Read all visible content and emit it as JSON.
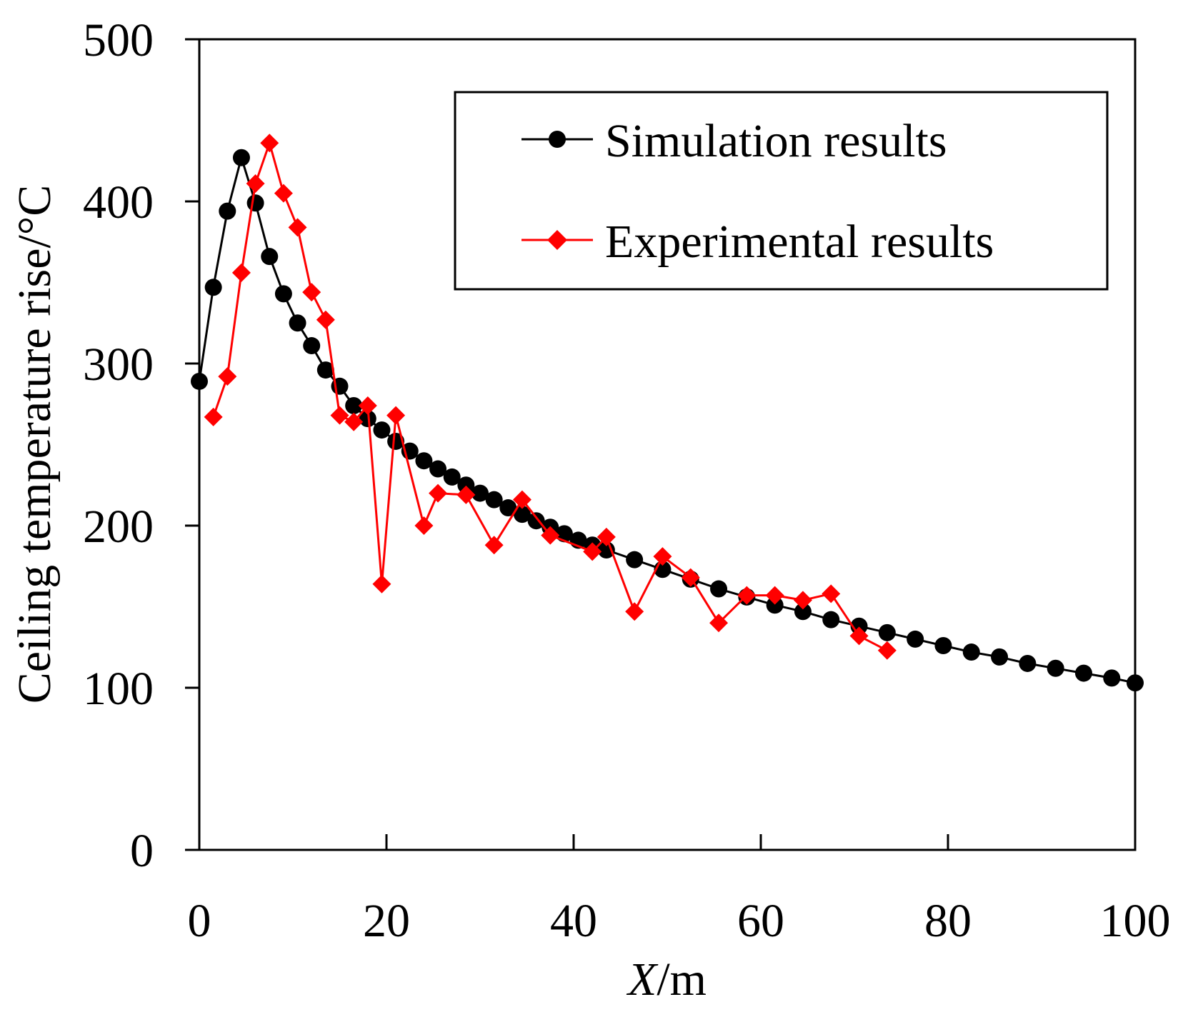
{
  "chart_data": {
    "type": "line",
    "title": "",
    "xlabel_var": "X",
    "xlabel_unit": "/m",
    "ylabel": "Ceiling temperature rise/°C",
    "xlim": [
      0,
      100
    ],
    "ylim": [
      0,
      500
    ],
    "xticks": [
      0,
      20,
      40,
      60,
      80,
      100
    ],
    "yticks": [
      0,
      100,
      200,
      300,
      400,
      500
    ],
    "xtick_labels": [
      "0",
      "20",
      "40",
      "60",
      "80",
      "100"
    ],
    "ytick_labels": [
      "0",
      "100",
      "200",
      "300",
      "400",
      "500"
    ],
    "grid": false,
    "legend_position": "top-right",
    "series": [
      {
        "name": "Simulation results",
        "color": "#000000",
        "marker": "circle",
        "x": [
          0,
          1.5,
          3,
          4.5,
          6,
          7.5,
          9,
          10.5,
          12,
          13.5,
          15,
          16.5,
          18,
          19.5,
          21,
          22.5,
          24,
          25.5,
          27,
          28.5,
          30,
          31.5,
          33,
          34.5,
          36,
          37.5,
          39,
          40.5,
          42,
          43.5,
          46.5,
          49.5,
          52.5,
          55.5,
          58.5,
          61.5,
          64.5,
          67.5,
          70.5,
          73.5,
          76.5,
          79.5,
          82.5,
          85.5,
          88.5,
          91.5,
          94.5,
          97.5,
          100
        ],
        "y": [
          289,
          347,
          394,
          427,
          399,
          366,
          343,
          325,
          311,
          296,
          286,
          274,
          266,
          259,
          252,
          246,
          240,
          235,
          230,
          225,
          220,
          216,
          211,
          207,
          203,
          199,
          195,
          191,
          188,
          185,
          179,
          173,
          167,
          161,
          156,
          151,
          147,
          142,
          138,
          134,
          130,
          126,
          122,
          119,
          115,
          112,
          109,
          106,
          103
        ]
      },
      {
        "name": "Experimental results",
        "color": "#ff0000",
        "marker": "diamond",
        "x": [
          1.5,
          3,
          4.5,
          6,
          7.5,
          9,
          10.5,
          12,
          13.5,
          15,
          16.5,
          18,
          19.5,
          21,
          24,
          25.5,
          28.5,
          31.5,
          34.5,
          37.5,
          42,
          43.5,
          46.5,
          49.5,
          52.5,
          55.5,
          58.5,
          61.5,
          64.5,
          67.5,
          70.5,
          73.5
        ],
        "y": [
          267,
          292,
          356,
          411,
          436,
          405,
          384,
          344,
          327,
          268,
          264,
          274,
          164,
          268,
          200,
          220,
          219,
          188,
          216,
          194,
          184,
          193,
          147,
          181,
          168,
          140,
          157,
          157,
          154,
          158,
          132,
          123
        ]
      }
    ]
  }
}
